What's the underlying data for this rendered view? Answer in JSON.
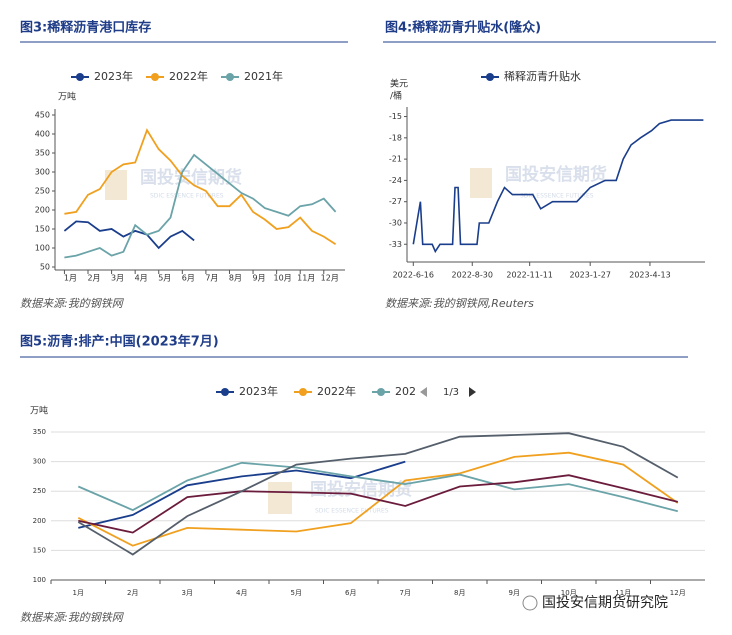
{
  "chart_data": [
    {
      "type": "line",
      "title": "图3:稀释沥青港口库存",
      "source": "数据来源:我的钢铁网",
      "y_label": "万吨",
      "xlim": [
        0.6,
        12.9
      ],
      "xticks": [
        {
          "value": 1,
          "label": "1月"
        },
        {
          "value": 2,
          "label": "2月"
        },
        {
          "value": 3,
          "label": "3月"
        },
        {
          "value": 4,
          "label": "4月"
        },
        {
          "value": 5,
          "label": "5月"
        },
        {
          "value": 6,
          "label": "6月"
        },
        {
          "value": 7,
          "label": "7月"
        },
        {
          "value": 8,
          "label": "8月"
        },
        {
          "value": 9,
          "label": "9月"
        },
        {
          "value": 10,
          "label": "10月"
        },
        {
          "value": 11,
          "label": "11月"
        },
        {
          "value": 12,
          "label": "12月"
        }
      ],
      "ylim": [
        50,
        450
      ],
      "yticks": [
        50,
        100,
        150,
        200,
        250,
        300,
        350,
        400,
        450
      ],
      "grid": false,
      "series": [
        {
          "name": "2023年",
          "color": "#1a3e8c",
          "x": [
            1,
            1.5,
            2,
            2.5,
            3,
            3.5,
            4,
            4.5,
            5,
            5.5,
            6,
            6.5
          ],
          "values": [
            145,
            170,
            168,
            145,
            150,
            130,
            145,
            135,
            100,
            130,
            145,
            120
          ]
        },
        {
          "name": "2022年",
          "color": "#f0a01e",
          "x": [
            1,
            1.5,
            2,
            2.5,
            3,
            3.5,
            4,
            4.5,
            5,
            5.5,
            6,
            6.5,
            7,
            7.5,
            8,
            8.5,
            9,
            9.5,
            10,
            10.5,
            11,
            11.5,
            12,
            12.5
          ],
          "values": [
            190,
            195,
            240,
            255,
            300,
            320,
            325,
            410,
            360,
            330,
            290,
            265,
            250,
            210,
            210,
            240,
            195,
            175,
            150,
            155,
            180,
            145,
            130,
            110
          ]
        },
        {
          "name": "2021年",
          "color": "#6aa3a8",
          "x": [
            1,
            1.5,
            2,
            2.5,
            3,
            3.5,
            4,
            4.5,
            5,
            5.5,
            6,
            6.5,
            7,
            7.5,
            8,
            8.5,
            9,
            9.5,
            10,
            10.5,
            11,
            11.5,
            12,
            12.5
          ],
          "values": [
            75,
            80,
            90,
            100,
            80,
            90,
            160,
            135,
            145,
            180,
            300,
            345,
            320,
            295,
            270,
            245,
            230,
            205,
            195,
            185,
            210,
            215,
            230,
            195
          ]
        }
      ]
    },
    {
      "type": "date-line",
      "title": "图4:稀释沥青升贴水(隆众)",
      "source": "数据来源:我的钢铁网,Reuters",
      "y_label": [
        "美元",
        "/桶"
      ],
      "xlim": [
        "2022-06-08",
        "2023-06-22"
      ],
      "xticks": [
        "2022-6-16",
        "2022-8-30",
        "2022-11-11",
        "2023-1-27",
        "2023-4-13"
      ],
      "ylim": [
        -35.5,
        -14.5
      ],
      "yticks": [
        -15,
        -18,
        -21,
        -24,
        -27,
        -30,
        -33
      ],
      "grid": false,
      "x": [
        "2022-06-16",
        "2022-06-22",
        "2022-06-25",
        "2022-06-28",
        "2022-07-10",
        "2022-07-14",
        "2022-07-20",
        "2022-08-05",
        "2022-08-08",
        "2022-08-12",
        "2022-08-15",
        "2022-09-05",
        "2022-09-08",
        "2022-09-20",
        "2022-10-01",
        "2022-10-10",
        "2022-10-20",
        "2022-11-01",
        "2022-11-15",
        "2022-11-25",
        "2022-12-10",
        "2023-01-10",
        "2023-01-27",
        "2023-02-15",
        "2023-03-01",
        "2023-03-10",
        "2023-03-20",
        "2023-04-01",
        "2023-04-15",
        "2023-04-25",
        "2023-05-10",
        "2023-06-20"
      ],
      "series": [
        {
          "name": "稀释沥青升贴水",
          "color": "#1a3e8c",
          "values": [
            -33,
            -29,
            -27,
            -33,
            -33,
            -34,
            -33,
            -33,
            -25,
            -25,
            -33,
            -33,
            -30,
            -30,
            -27,
            -25,
            -26,
            -26,
            -26,
            -28,
            -27,
            -27,
            -25,
            -24,
            -24,
            -21,
            -19,
            -18,
            -17,
            -16,
            -15.5,
            -15.5
          ]
        }
      ]
    },
    {
      "type": "line",
      "title": "图5:沥青:排产:中国(2023年7月)",
      "source": "数据来源:我的钢铁网",
      "y_label": "万吨",
      "legend_page": "1/3",
      "categories": [
        "1月",
        "2月",
        "3月",
        "4月",
        "5月",
        "6月",
        "7月",
        "8月",
        "9月",
        "10月",
        "11月",
        "12月"
      ],
      "ylim": [
        100,
        350
      ],
      "yticks": [
        100,
        150,
        200,
        250,
        300,
        350
      ],
      "grid": true,
      "series": [
        {
          "name": "2023年",
          "color": "#1a3e8c",
          "values": [
            188,
            210,
            260,
            275,
            285,
            272,
            300,
            null,
            null,
            null,
            null,
            null
          ]
        },
        {
          "name": "2022年",
          "color": "#f0a01e",
          "values": [
            205,
            158,
            188,
            185,
            182,
            196,
            268,
            280,
            308,
            315,
            295,
            230
          ]
        },
        {
          "name": "202",
          "color": "#6aa3a8",
          "values": [
            258,
            218,
            268,
            298,
            290,
            275,
            262,
            278,
            253,
            262,
            240,
            216
          ]
        },
        {
          "color": "#6b1c3c",
          "values": [
            200,
            180,
            240,
            250,
            248,
            246,
            225,
            258,
            265,
            277,
            255,
            232
          ]
        },
        {
          "color": "#555f6b",
          "values": [
            198,
            143,
            208,
            250,
            295,
            305,
            313,
            342,
            345,
            348,
            325,
            273
          ]
        }
      ]
    }
  ],
  "watermark": "国投安信期货",
  "watermark_en": "SDIC ESSENCE FUTURES",
  "footer": "国投安信期货研究院"
}
